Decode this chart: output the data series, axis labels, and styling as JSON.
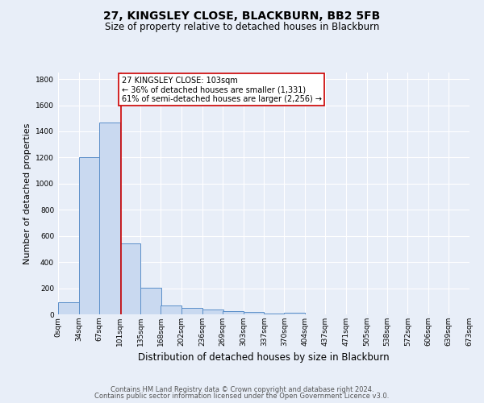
{
  "title1": "27, KINGSLEY CLOSE, BLACKBURN, BB2 5FB",
  "title2": "Size of property relative to detached houses in Blackburn",
  "xlabel": "Distribution of detached houses by size in Blackburn",
  "ylabel": "Number of detached properties",
  "bin_labels": [
    "0sqm",
    "34sqm",
    "67sqm",
    "101sqm",
    "135sqm",
    "168sqm",
    "202sqm",
    "236sqm",
    "269sqm",
    "303sqm",
    "337sqm",
    "370sqm",
    "404sqm",
    "437sqm",
    "471sqm",
    "505sqm",
    "538sqm",
    "572sqm",
    "606sqm",
    "639sqm",
    "673sqm"
  ],
  "bin_edges": [
    0,
    34,
    67,
    101,
    135,
    168,
    202,
    236,
    269,
    303,
    337,
    370,
    404,
    437,
    471,
    505,
    538,
    572,
    606,
    639,
    673
  ],
  "bar_heights": [
    90,
    1200,
    1470,
    540,
    205,
    65,
    50,
    40,
    27,
    20,
    8,
    12,
    0,
    0,
    0,
    0,
    0,
    0,
    0,
    0
  ],
  "bar_color": "#c9d9f0",
  "bar_edge_color": "#5b8fc9",
  "background_color": "#e8eef8",
  "grid_color": "#ffffff",
  "property_line_x": 103,
  "annotation_text": "27 KINGSLEY CLOSE: 103sqm\n← 36% of detached houses are smaller (1,331)\n61% of semi-detached houses are larger (2,256) →",
  "annotation_box_color": "#ffffff",
  "annotation_box_edge": "#cc0000",
  "vline_color": "#cc0000",
  "ylim": [
    0,
    1850
  ],
  "yticks": [
    0,
    200,
    400,
    600,
    800,
    1000,
    1200,
    1400,
    1600,
    1800
  ],
  "footer1": "Contains HM Land Registry data © Crown copyright and database right 2024.",
  "footer2": "Contains public sector information licensed under the Open Government Licence v3.0.",
  "title1_fontsize": 10,
  "title2_fontsize": 8.5,
  "xlabel_fontsize": 8.5,
  "ylabel_fontsize": 8,
  "tick_fontsize": 6.5,
  "footer_fontsize": 6,
  "annot_fontsize": 7
}
